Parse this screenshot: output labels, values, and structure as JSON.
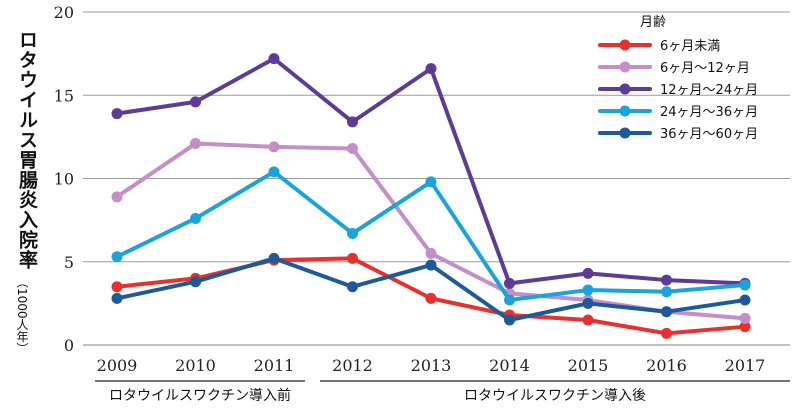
{
  "chart_data": {
    "type": "line",
    "ylabel": "ロタウイルス胃腸炎入院率",
    "ylabel_unit": "（1000人年）",
    "categories": [
      "2009",
      "2010",
      "2011",
      "2012",
      "2013",
      "2014",
      "2015",
      "2016",
      "2017"
    ],
    "ylim": [
      0,
      20
    ],
    "yticks": [
      "0",
      "5",
      "10",
      "15",
      "20"
    ],
    "grid": "horizontal",
    "legend_title": "月齢",
    "legend_position": "top-right",
    "periods": [
      {
        "label": "ロタウイルスワクチン導入前",
        "from": "2009",
        "to": "2011"
      },
      {
        "label": "ロタウイルスワクチン導入後",
        "from": "2012",
        "to": "2017"
      }
    ],
    "series": [
      {
        "name": "6ヶ月未満",
        "color": "#e8302e",
        "values": [
          3.5,
          4.0,
          5.1,
          5.2,
          2.8,
          1.8,
          1.5,
          0.7,
          1.1
        ]
      },
      {
        "name": "6ヶ月〜12ヶ月",
        "color": "#c48fc8",
        "values": [
          8.9,
          12.1,
          11.9,
          11.8,
          5.5,
          3.1,
          2.7,
          2.0,
          1.6
        ]
      },
      {
        "name": "12ヶ月〜24ヶ月",
        "color": "#5d3b96",
        "values": [
          13.9,
          14.6,
          17.2,
          13.4,
          16.6,
          3.7,
          4.3,
          3.9,
          3.7
        ]
      },
      {
        "name": "24ヶ月〜36ヶ月",
        "color": "#1ca3da",
        "values": [
          5.3,
          7.6,
          10.4,
          6.7,
          9.8,
          2.7,
          3.3,
          3.2,
          3.6
        ]
      },
      {
        "name": "36ヶ月〜60ヶ月",
        "color": "#1d5a9c",
        "values": [
          2.8,
          3.8,
          5.2,
          3.5,
          4.8,
          1.5,
          2.5,
          2.0,
          2.7
        ]
      }
    ]
  }
}
